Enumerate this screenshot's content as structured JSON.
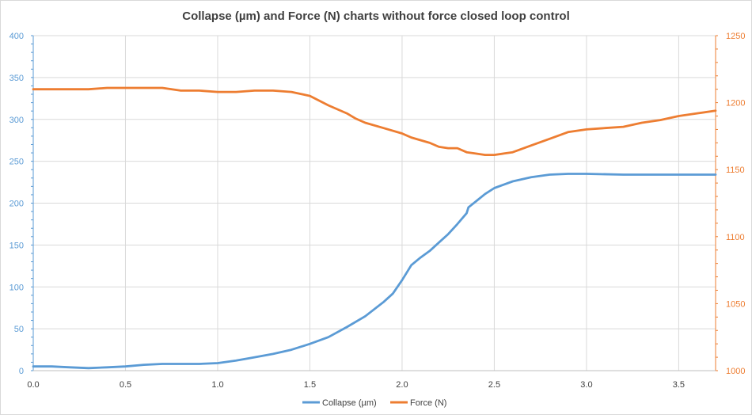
{
  "chart_data": {
    "type": "line",
    "title": "Collapse (µm) and Force (N) charts without force closed loop control",
    "xlabel": "",
    "ylabel": "",
    "y2label": "",
    "xlim": [
      0,
      3.7
    ],
    "ylim": [
      0,
      400
    ],
    "y2lim": [
      1000,
      1250
    ],
    "x_ticks": [
      "0.0",
      "0.5",
      "1.0",
      "1.5",
      "2.0",
      "2.5",
      "3.0",
      "3.5"
    ],
    "y_ticks": [
      "0",
      "50",
      "100",
      "150",
      "200",
      "250",
      "300",
      "350",
      "400"
    ],
    "y2_ticks": [
      "1000",
      "1050",
      "1100",
      "1150",
      "1200",
      "1250"
    ],
    "grid": true,
    "legend_position": "bottom",
    "series": [
      {
        "name": "Collapse (µm)",
        "axis": "left",
        "color": "#5b9bd5",
        "x": [
          0.0,
          0.1,
          0.2,
          0.3,
          0.4,
          0.5,
          0.6,
          0.7,
          0.8,
          0.9,
          1.0,
          1.1,
          1.2,
          1.3,
          1.4,
          1.5,
          1.6,
          1.7,
          1.8,
          1.9,
          1.95,
          2.0,
          2.05,
          2.1,
          2.15,
          2.2,
          2.25,
          2.3,
          2.35,
          2.36,
          2.4,
          2.45,
          2.5,
          2.6,
          2.7,
          2.8,
          2.9,
          3.0,
          3.2,
          3.4,
          3.6,
          3.7
        ],
        "y": [
          5,
          5,
          4,
          3,
          4,
          5,
          7,
          8,
          8,
          8,
          9,
          12,
          16,
          20,
          25,
          32,
          40,
          52,
          65,
          82,
          92,
          108,
          126,
          135,
          143,
          153,
          163,
          175,
          188,
          195,
          202,
          211,
          218,
          226,
          231,
          234,
          235,
          235,
          234,
          234,
          234,
          234
        ]
      },
      {
        "name": "Force (N)",
        "axis": "right",
        "color": "#ed7d31",
        "x": [
          0.0,
          0.1,
          0.2,
          0.3,
          0.4,
          0.5,
          0.6,
          0.7,
          0.8,
          0.9,
          1.0,
          1.1,
          1.2,
          1.3,
          1.4,
          1.5,
          1.6,
          1.7,
          1.75,
          1.8,
          1.9,
          2.0,
          2.05,
          2.1,
          2.15,
          2.2,
          2.25,
          2.3,
          2.35,
          2.4,
          2.45,
          2.5,
          2.55,
          2.6,
          2.7,
          2.8,
          2.9,
          3.0,
          3.1,
          3.2,
          3.3,
          3.4,
          3.5,
          3.6,
          3.7
        ],
        "y": [
          1210,
          1210,
          1210,
          1210,
          1211,
          1211,
          1211,
          1211,
          1209,
          1209,
          1208,
          1208,
          1209,
          1209,
          1208,
          1205,
          1198,
          1192,
          1188,
          1185,
          1181,
          1177,
          1174,
          1172,
          1170,
          1167,
          1166,
          1166,
          1163,
          1162,
          1161,
          1161,
          1162,
          1163,
          1168,
          1173,
          1178,
          1180,
          1181,
          1182,
          1185,
          1187,
          1190,
          1192,
          1194
        ]
      }
    ]
  }
}
